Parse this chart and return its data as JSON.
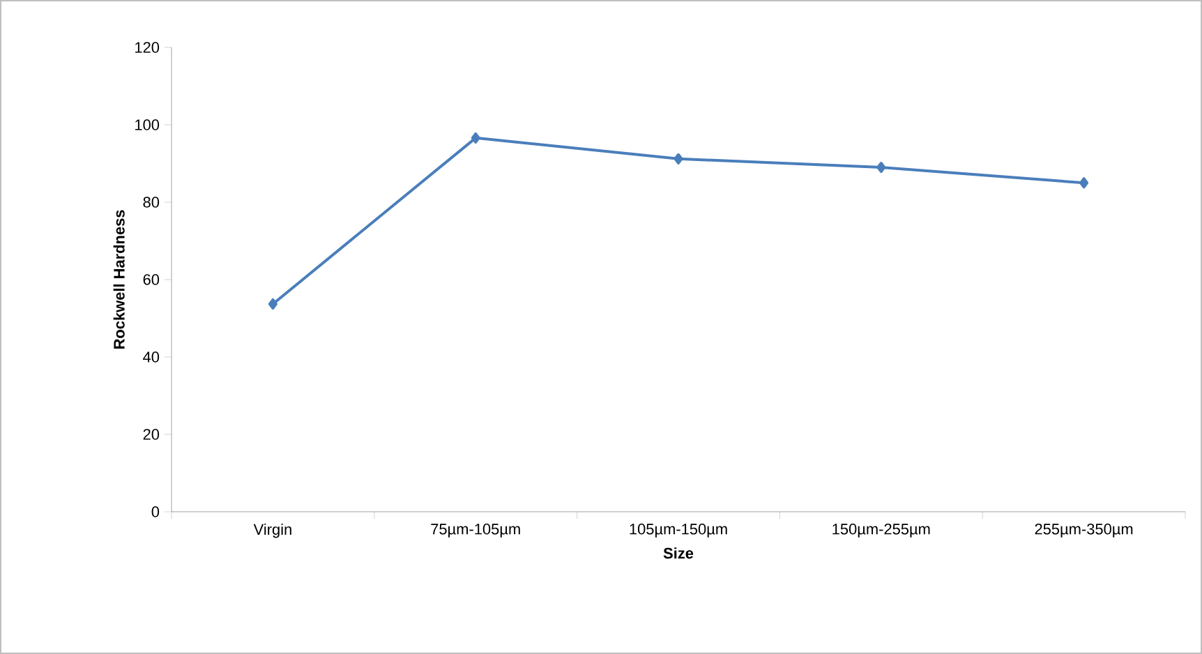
{
  "chart_data": {
    "type": "line",
    "xlabel": "Size",
    "ylabel": "Rockwell Hardness",
    "categories": [
      "Virgin",
      "75µm-105µm",
      "105µm-150µm",
      "150µm-255µm",
      "255µm-350µm"
    ],
    "series": [
      {
        "color": "#4a7ebb",
        "values": [
          53.7,
          96.6,
          91.2,
          89.0,
          85.0
        ]
      }
    ],
    "ylim": [
      0,
      120
    ],
    "yticks": [
      0,
      20,
      40,
      60,
      80,
      100,
      120
    ],
    "marker": "diamond",
    "line_style": "solid"
  }
}
